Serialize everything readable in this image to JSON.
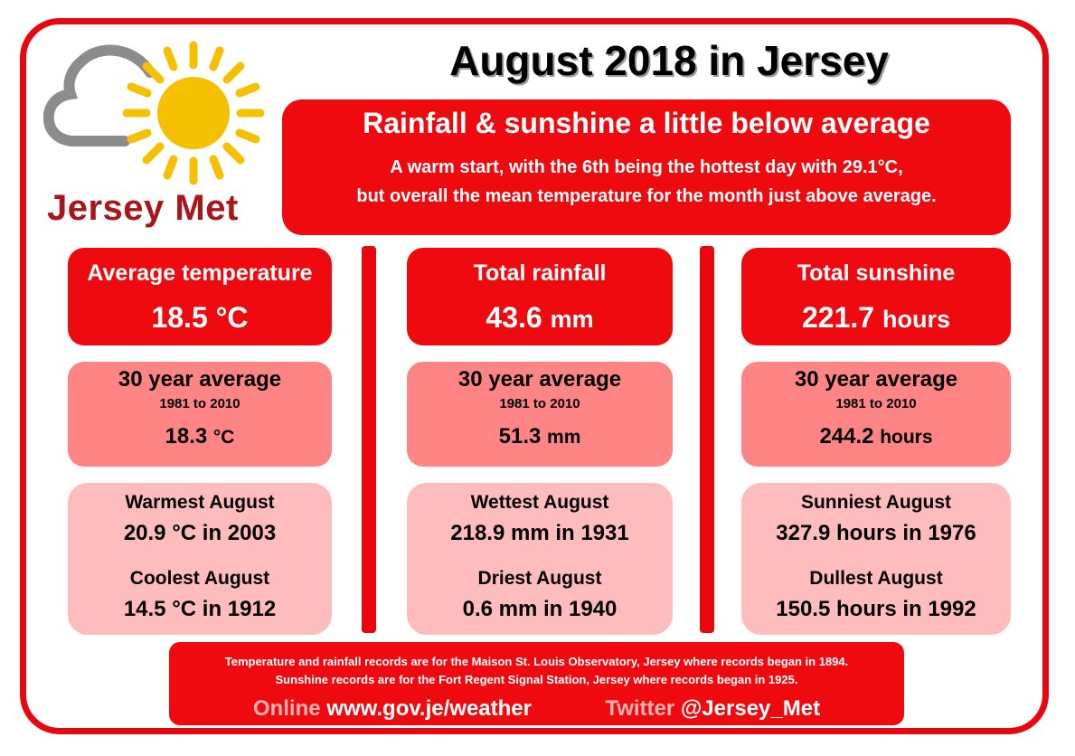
{
  "logo": {
    "text": "Jersey Met",
    "icon": "cloud-sun-icon",
    "sun_color": "#f5c000",
    "cloud_color": "#8c8c8c"
  },
  "title": "August 2018 in Jersey",
  "headline": {
    "title": "Rainfall & sunshine a little below average",
    "line1": "A warm start, with the 6th being the hottest day with 29.1°C,",
    "line2": "but overall the mean temperature for the month just above average."
  },
  "colors": {
    "primary_red": "#ef0a10",
    "average_pink": "#ff8484",
    "record_pink": "#ffbcbc",
    "logo_text": "#a8151b"
  },
  "temperature": {
    "label": "Average temperature",
    "value": "18.5",
    "unit": "°C",
    "avg_label": "30 year average",
    "avg_years": "1981 to 2010",
    "avg_value": "18.3",
    "avg_unit": "°C",
    "record_high_label": "Warmest August",
    "record_high_value": "20.9 °C in 2003",
    "record_low_label": "Coolest August",
    "record_low_value": "14.5 °C in 1912"
  },
  "rainfall": {
    "label": "Total rainfall",
    "value": "43.6",
    "unit": "mm",
    "avg_label": "30 year average",
    "avg_years": "1981 to 2010",
    "avg_value": "51.3",
    "avg_unit": "mm",
    "record_high_label": "Wettest August",
    "record_high_value": "218.9 mm in 1931",
    "record_low_label": "Driest August",
    "record_low_value": "0.6 mm in 1940"
  },
  "sunshine": {
    "label": "Total sunshine",
    "value": "221.7",
    "unit": "hours",
    "avg_label": "30 year average",
    "avg_years": "1981 to 2010",
    "avg_value": "244.2",
    "avg_unit": "hours",
    "record_high_label": "Sunniest August",
    "record_high_value": "327.9 hours in 1976",
    "record_low_label": "Dullest August",
    "record_low_value": "150.5 hours in 1992"
  },
  "footer": {
    "note1": "Temperature and rainfall records are for the Maison St. Louis Observatory, Jersey where records began in 1894.",
    "note2": "Sunshine records are for the Fort Regent Signal Station, Jersey where records began in 1925.",
    "online_label": "Online",
    "online_value": "www.gov.je/weather",
    "twitter_label": "Twitter",
    "twitter_value": "@Jersey_Met"
  }
}
